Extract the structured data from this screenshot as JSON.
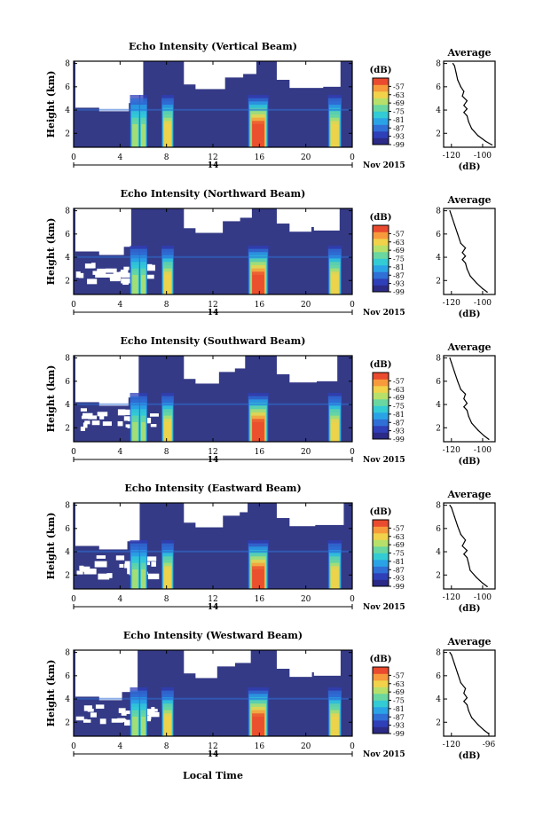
{
  "figure": {
    "xaxis_common_label": "Local Time",
    "date_label": "Nov 2015",
    "colorbar_unit": "(dB)",
    "colorbar_ticks": [
      "-57",
      "-63",
      "-69",
      "-75",
      "-81",
      "-87",
      "-93",
      "-99"
    ]
  },
  "chart_data": [
    {
      "type": "heatmap",
      "title": "Echo Intensity (Vertical Beam)",
      "ylabel": "Height (km)",
      "xlabel": "Local Time",
      "x_ticks": [
        "0",
        "4",
        "8",
        "12",
        "16",
        "20",
        "0"
      ],
      "x_range_hours": [
        0,
        24
      ],
      "day_label": "14",
      "date_label": "Nov 2015",
      "y_ticks": [
        "2",
        "4",
        "6",
        "8"
      ],
      "y_range_km": [
        0.8,
        8.2
      ],
      "colorbar": {
        "unit": "(dB)",
        "ticks": [
          -57,
          -63,
          -69,
          -75,
          -81,
          -87,
          -93,
          -99
        ],
        "range": [
          -99,
          -51
        ]
      },
      "profile": {
        "title": "Average",
        "xlabel": "(dB)",
        "x_ticks": [
          "-120",
          "-100"
        ],
        "x_range": [
          -125,
          -92
        ],
        "y_ticks": [
          "2",
          "4",
          "6",
          "8"
        ],
        "y_range_km": [
          0.8,
          8.2
        ],
        "points": [
          [
            -94,
            1.0
          ],
          [
            -98,
            1.3
          ],
          [
            -103,
            1.8
          ],
          [
            -107,
            2.4
          ],
          [
            -109,
            3.0
          ],
          [
            -110,
            3.5
          ],
          [
            -112,
            3.8
          ],
          [
            -110,
            4.1
          ],
          [
            -112,
            4.4
          ],
          [
            -110,
            4.8
          ],
          [
            -113,
            5.2
          ],
          [
            -112,
            5.6
          ],
          [
            -114,
            6.0
          ],
          [
            -116,
            6.6
          ],
          [
            -117,
            7.2
          ],
          [
            -118,
            7.8
          ],
          [
            -119,
            8.0
          ]
        ]
      }
    },
    {
      "type": "heatmap",
      "title": "Echo Intensity (Northward Beam)",
      "ylabel": "Height (km)",
      "xlabel": "Local Time",
      "x_ticks": [
        "0",
        "4",
        "8",
        "12",
        "16",
        "20",
        "0"
      ],
      "x_range_hours": [
        0,
        24
      ],
      "day_label": "14",
      "date_label": "Nov 2015",
      "y_ticks": [
        "2",
        "4",
        "6",
        "8"
      ],
      "y_range_km": [
        0.8,
        8.2
      ],
      "colorbar": {
        "unit": "(dB)",
        "ticks": [
          -57,
          -63,
          -69,
          -75,
          -81,
          -87,
          -93,
          -99
        ],
        "range": [
          -99,
          -51
        ]
      },
      "profile": {
        "title": "Average",
        "xlabel": "(dB)",
        "x_ticks": [
          "-120",
          "-100"
        ],
        "x_range": [
          -125,
          -92
        ],
        "y_ticks": [
          "2",
          "4",
          "6",
          "8"
        ],
        "y_range_km": [
          0.8,
          8.2
        ],
        "points": [
          [
            -97,
            1.0
          ],
          [
            -100,
            1.3
          ],
          [
            -104,
            1.8
          ],
          [
            -108,
            2.4
          ],
          [
            -110,
            3.0
          ],
          [
            -111,
            3.5
          ],
          [
            -113,
            3.8
          ],
          [
            -111,
            4.1
          ],
          [
            -113,
            4.4
          ],
          [
            -111,
            4.8
          ],
          [
            -114,
            5.2
          ],
          [
            -116,
            6.0
          ],
          [
            -118,
            6.8
          ],
          [
            -120,
            7.6
          ],
          [
            -121,
            8.0
          ]
        ]
      }
    },
    {
      "type": "heatmap",
      "title": "Echo Intensity (Southward Beam)",
      "ylabel": "Height (km)",
      "xlabel": "Local Time",
      "x_ticks": [
        "0",
        "4",
        "8",
        "12",
        "16",
        "20",
        "0"
      ],
      "x_range_hours": [
        0,
        24
      ],
      "day_label": "14",
      "date_label": "Nov 2015",
      "y_ticks": [
        "2",
        "4",
        "6",
        "8"
      ],
      "y_range_km": [
        0.8,
        8.2
      ],
      "colorbar": {
        "unit": "(dB)",
        "ticks": [
          -57,
          -63,
          -69,
          -75,
          -81,
          -87,
          -93,
          -99
        ],
        "range": [
          -99,
          -51
        ]
      },
      "profile": {
        "title": "Average",
        "xlabel": "(dB)",
        "x_ticks": [
          "-120",
          "-100"
        ],
        "x_range": [
          -125,
          -92
        ],
        "y_ticks": [
          "2",
          "4",
          "6",
          "8"
        ],
        "y_range_km": [
          0.8,
          8.2
        ],
        "points": [
          [
            -96,
            1.0
          ],
          [
            -99,
            1.3
          ],
          [
            -103,
            1.8
          ],
          [
            -107,
            2.4
          ],
          [
            -109,
            3.0
          ],
          [
            -110,
            3.5
          ],
          [
            -112,
            3.8
          ],
          [
            -110,
            4.1
          ],
          [
            -112,
            4.5
          ],
          [
            -111,
            4.9
          ],
          [
            -114,
            5.3
          ],
          [
            -116,
            6.0
          ],
          [
            -118,
            6.8
          ],
          [
            -120,
            7.6
          ],
          [
            -121,
            8.0
          ]
        ]
      }
    },
    {
      "type": "heatmap",
      "title": "Echo Intensity (Eastward Beam)",
      "ylabel": "Height (km)",
      "xlabel": "Local Time",
      "x_ticks": [
        "0",
        "4",
        "8",
        "12",
        "16",
        "20",
        "0"
      ],
      "x_range_hours": [
        0,
        24
      ],
      "day_label": "14",
      "date_label": "Nov 2015",
      "y_ticks": [
        "2",
        "4",
        "6",
        "8"
      ],
      "y_range_km": [
        0.8,
        8.2
      ],
      "colorbar": {
        "unit": "(dB)",
        "ticks": [
          -57,
          -63,
          -69,
          -75,
          -81,
          -87,
          -93,
          -99
        ],
        "range": [
          -99,
          -51
        ]
      },
      "profile": {
        "title": "Average",
        "xlabel": "(dB)",
        "x_ticks": [
          "-120",
          "-100"
        ],
        "x_range": [
          -125,
          -92
        ],
        "y_ticks": [
          "2",
          "4",
          "6",
          "8"
        ],
        "y_range_km": [
          0.8,
          8.2
        ],
        "points": [
          [
            -97,
            1.0
          ],
          [
            -100,
            1.3
          ],
          [
            -104,
            1.8
          ],
          [
            -108,
            2.4
          ],
          [
            -109,
            3.0
          ],
          [
            -110,
            3.5
          ],
          [
            -112,
            3.8
          ],
          [
            -110,
            4.1
          ],
          [
            -113,
            4.5
          ],
          [
            -111,
            5.0
          ],
          [
            -114,
            5.5
          ],
          [
            -116,
            6.2
          ],
          [
            -118,
            7.0
          ],
          [
            -120,
            7.8
          ],
          [
            -121,
            8.0
          ]
        ]
      }
    },
    {
      "type": "heatmap",
      "title": "Echo Intensity (Westward Beam)",
      "ylabel": "Height (km)",
      "xlabel": "Local Time",
      "x_ticks": [
        "0",
        "4",
        "8",
        "12",
        "16",
        "20",
        "0"
      ],
      "x_range_hours": [
        0,
        24
      ],
      "day_label": "14",
      "date_label": "Nov 2015",
      "y_ticks": [
        "2",
        "4",
        "6",
        "8"
      ],
      "y_range_km": [
        0.8,
        8.2
      ],
      "colorbar": {
        "unit": "(dB)",
        "ticks": [
          -57,
          -63,
          -69,
          -75,
          -81,
          -87,
          -93,
          -99
        ],
        "range": [
          -99,
          -51
        ]
      },
      "profile": {
        "title": "Average",
        "xlabel": "(dB)",
        "x_ticks": [
          "-120",
          "-96"
        ],
        "x_range": [
          -125,
          -92
        ],
        "y_ticks": [
          "2",
          "4",
          "6",
          "8"
        ],
        "y_range_km": [
          0.8,
          8.2
        ],
        "points": [
          [
            -96,
            1.0
          ],
          [
            -99,
            1.3
          ],
          [
            -103,
            1.8
          ],
          [
            -107,
            2.4
          ],
          [
            -109,
            3.0
          ],
          [
            -110,
            3.5
          ],
          [
            -112,
            3.8
          ],
          [
            -110,
            4.1
          ],
          [
            -112,
            4.5
          ],
          [
            -111,
            4.9
          ],
          [
            -114,
            5.4
          ],
          [
            -116,
            6.2
          ],
          [
            -118,
            7.0
          ],
          [
            -120,
            7.8
          ],
          [
            -121,
            8.0
          ]
        ]
      }
    }
  ]
}
